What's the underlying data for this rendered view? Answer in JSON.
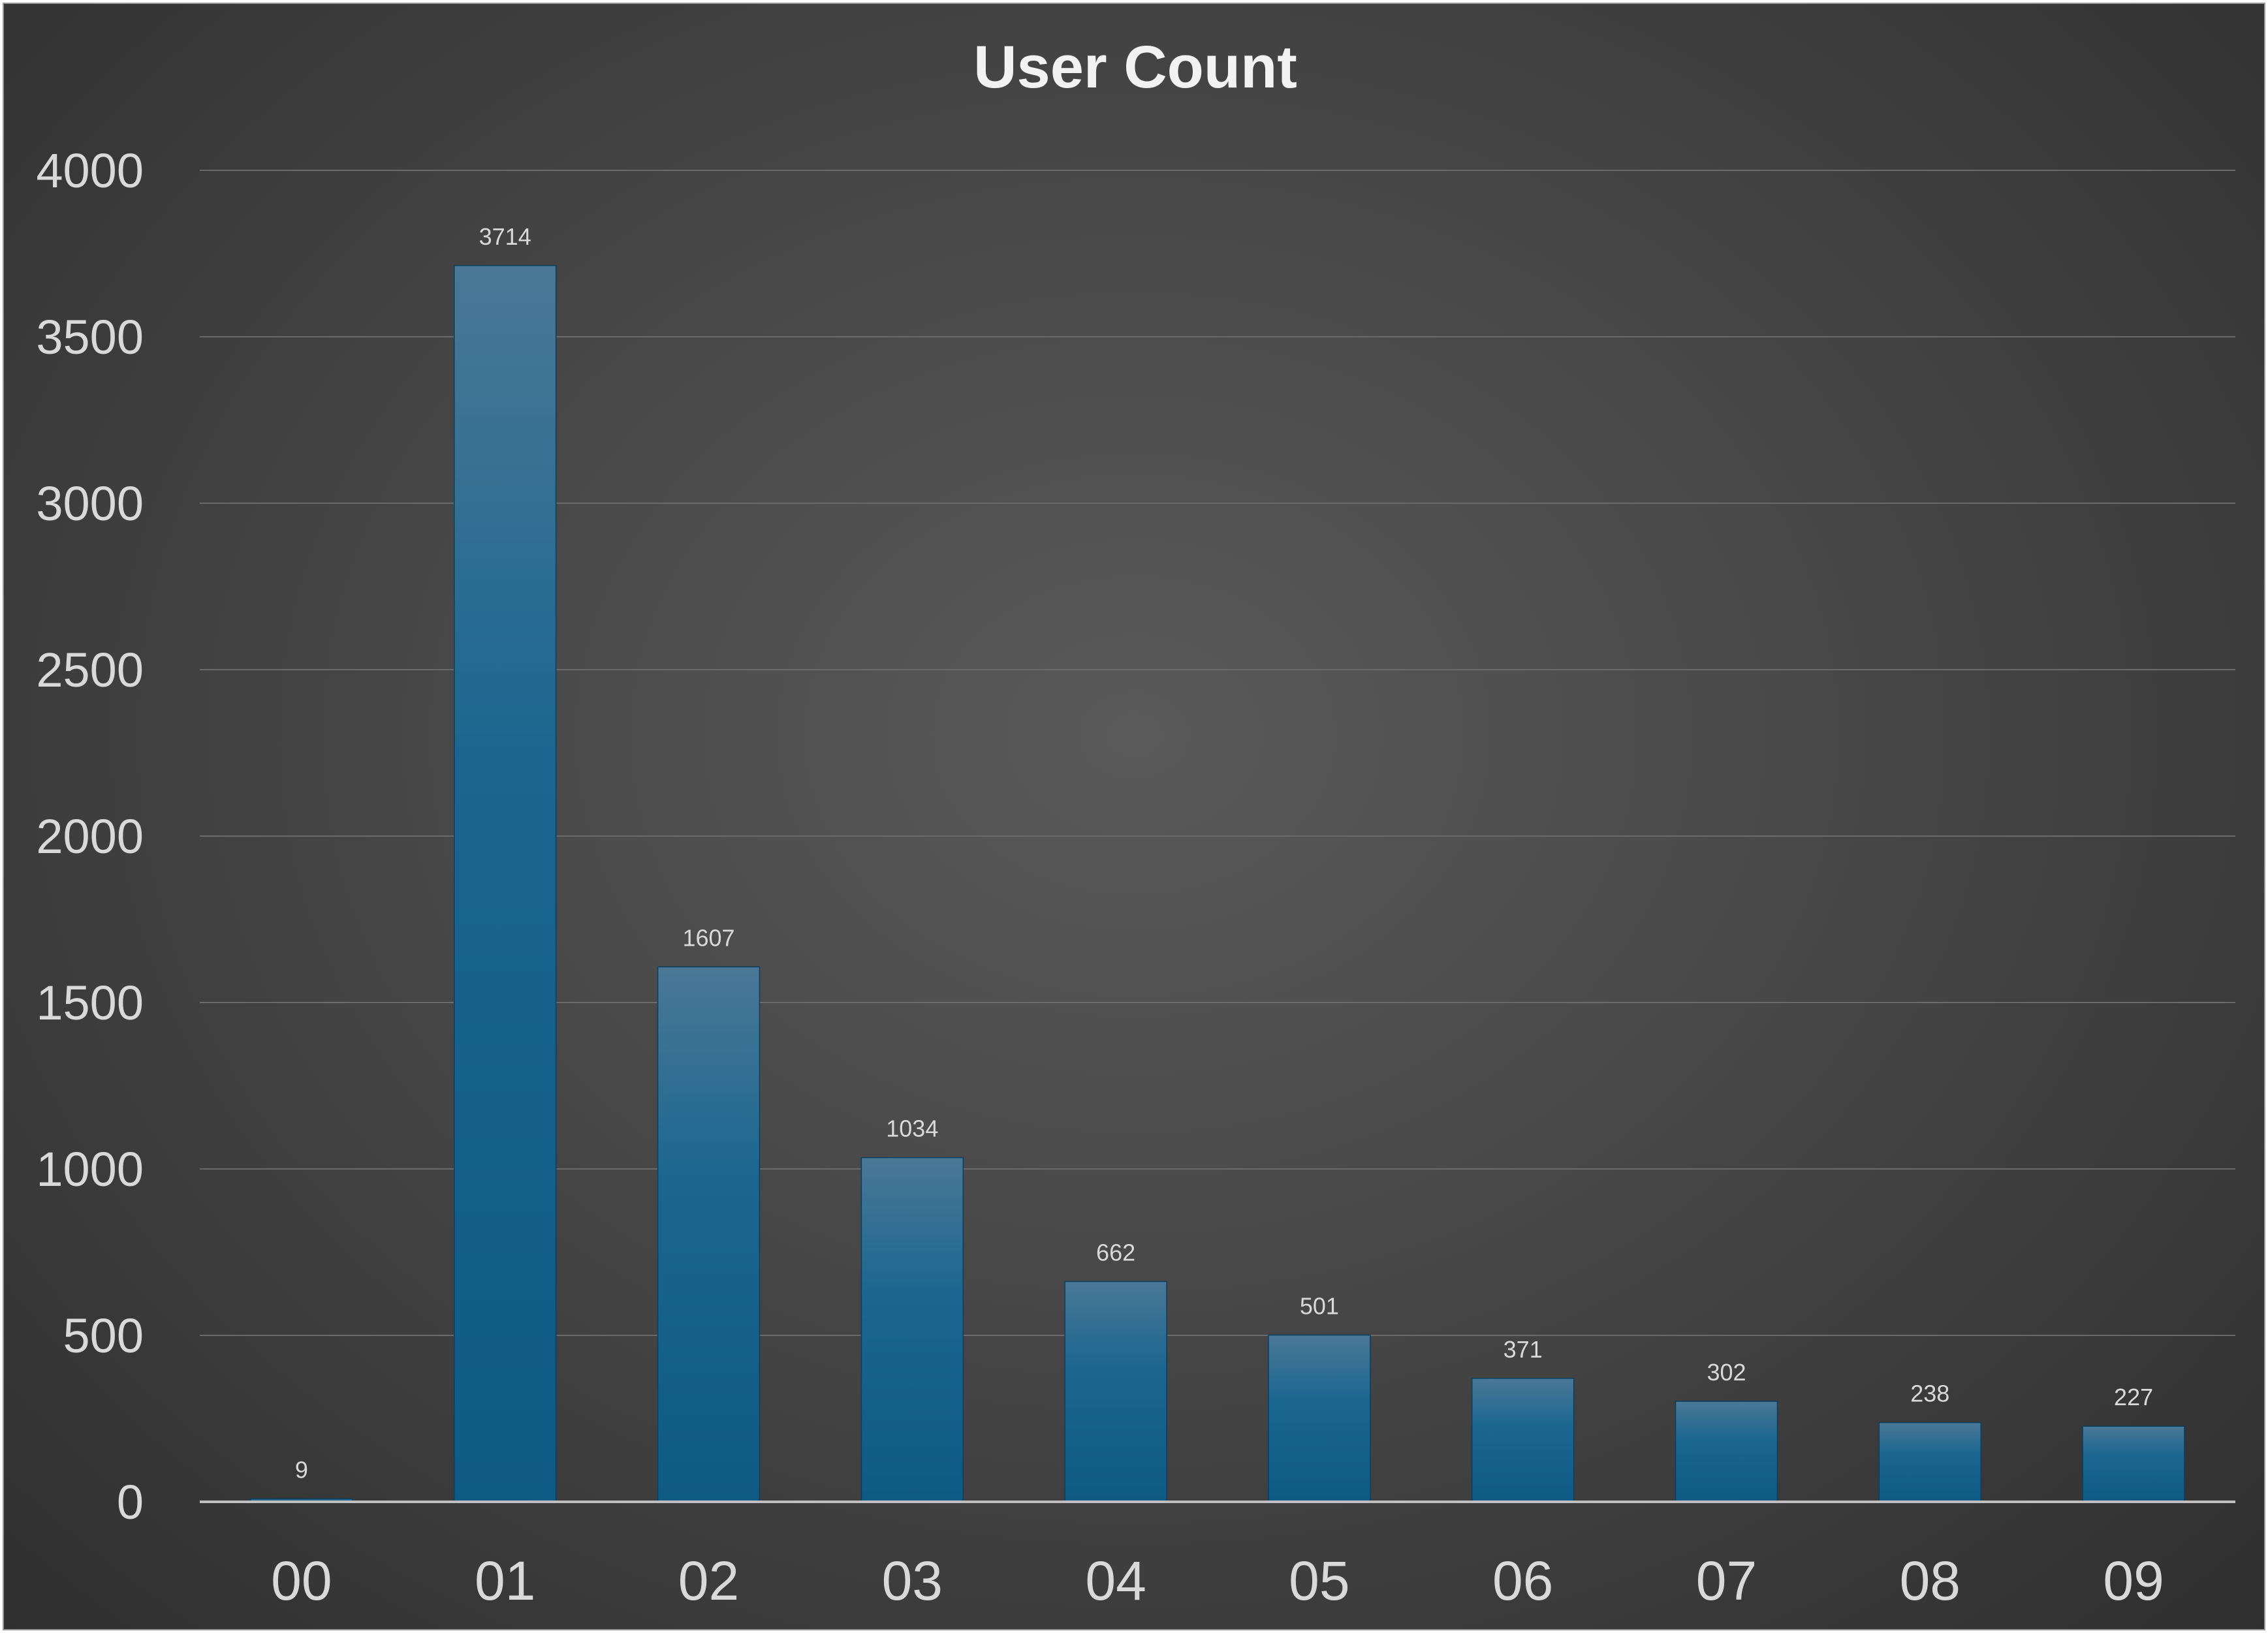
{
  "chart_data": {
    "type": "bar",
    "title": "User Count",
    "xlabel": "",
    "ylabel": "",
    "categories": [
      "00",
      "01",
      "02",
      "03",
      "04",
      "05",
      "06",
      "07",
      "08",
      "09"
    ],
    "values": [
      9,
      3714,
      1607,
      1034,
      662,
      501,
      371,
      302,
      238,
      227
    ],
    "ylim": [
      0,
      4000
    ],
    "yticks": [
      "0",
      "500",
      "1000",
      "1500",
      "2000",
      "2500",
      "3000",
      "3500",
      "4000"
    ],
    "grid": true,
    "legend": "none",
    "colors": {
      "bar_top": "#4a7896",
      "bar_bottom": "#0d5a84",
      "background": "#4a4a4a",
      "gridline": "#6a6a6a",
      "axis": "#bfbfbf",
      "text": "#d9d9d9"
    }
  }
}
